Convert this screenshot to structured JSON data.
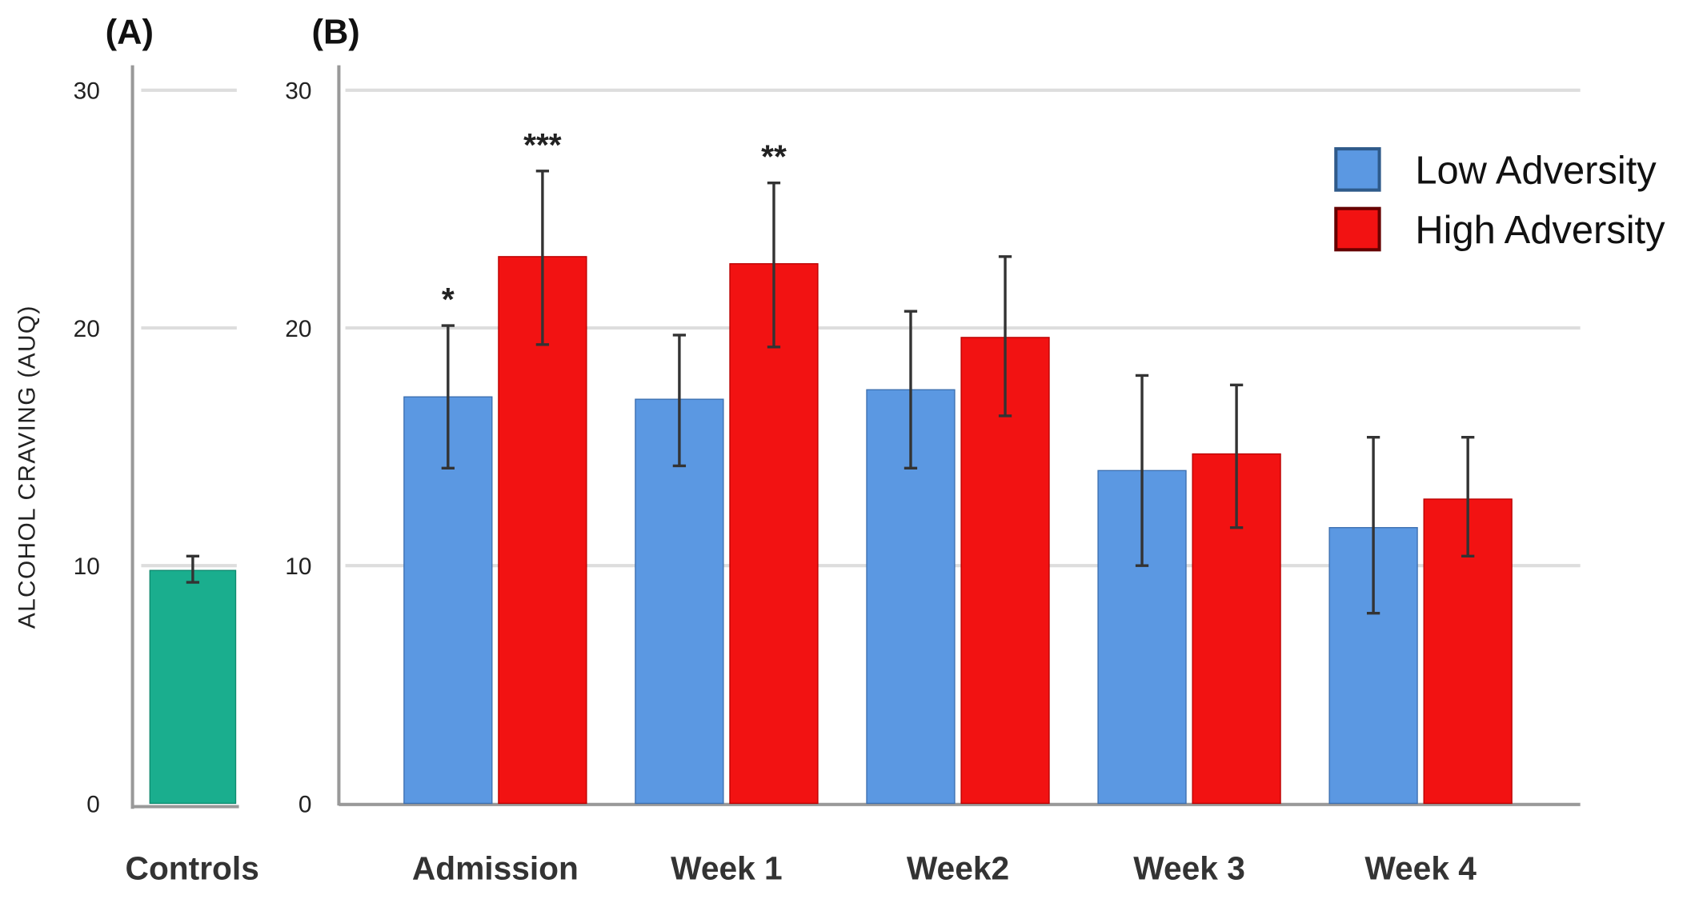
{
  "chart_data": [
    {
      "panel_label": "(A)",
      "type": "bar",
      "categories": [
        "Controls"
      ],
      "values": [
        9.8
      ],
      "error_low": [
        9.3
      ],
      "error_high": [
        10.4
      ],
      "ylabel": "ALCOHOL CRAVING (AUQ)",
      "ylim": [
        0,
        30
      ],
      "yticks": [
        0,
        10,
        20,
        30
      ],
      "grid": true,
      "color": "#1aae8e"
    },
    {
      "panel_label": "(B)",
      "type": "bar",
      "categories": [
        "Admission",
        "Week 1",
        "Week2",
        "Week 3",
        "Week 4"
      ],
      "ylim": [
        0,
        30
      ],
      "yticks": [
        0,
        10,
        20,
        30
      ],
      "grid": true,
      "legend_placement": "top-right",
      "series": [
        {
          "name": "Low Adversity",
          "color": "#5b98e2",
          "values": [
            17.1,
            17.0,
            17.4,
            14.0,
            11.6
          ],
          "error_low": [
            14.1,
            14.2,
            14.1,
            10.0,
            8.0
          ],
          "error_high": [
            20.1,
            19.7,
            20.7,
            18.0,
            15.4
          ],
          "annotations": [
            "*",
            "",
            "",
            "",
            ""
          ]
        },
        {
          "name": "High Adversity",
          "color": "#f21212",
          "values": [
            23.0,
            22.7,
            19.6,
            14.7,
            12.8
          ],
          "error_low": [
            19.3,
            19.2,
            16.3,
            11.6,
            10.4
          ],
          "error_high": [
            26.6,
            26.1,
            23.0,
            17.6,
            15.4
          ],
          "annotations": [
            "***",
            "**",
            "",
            "",
            ""
          ]
        }
      ]
    }
  ]
}
